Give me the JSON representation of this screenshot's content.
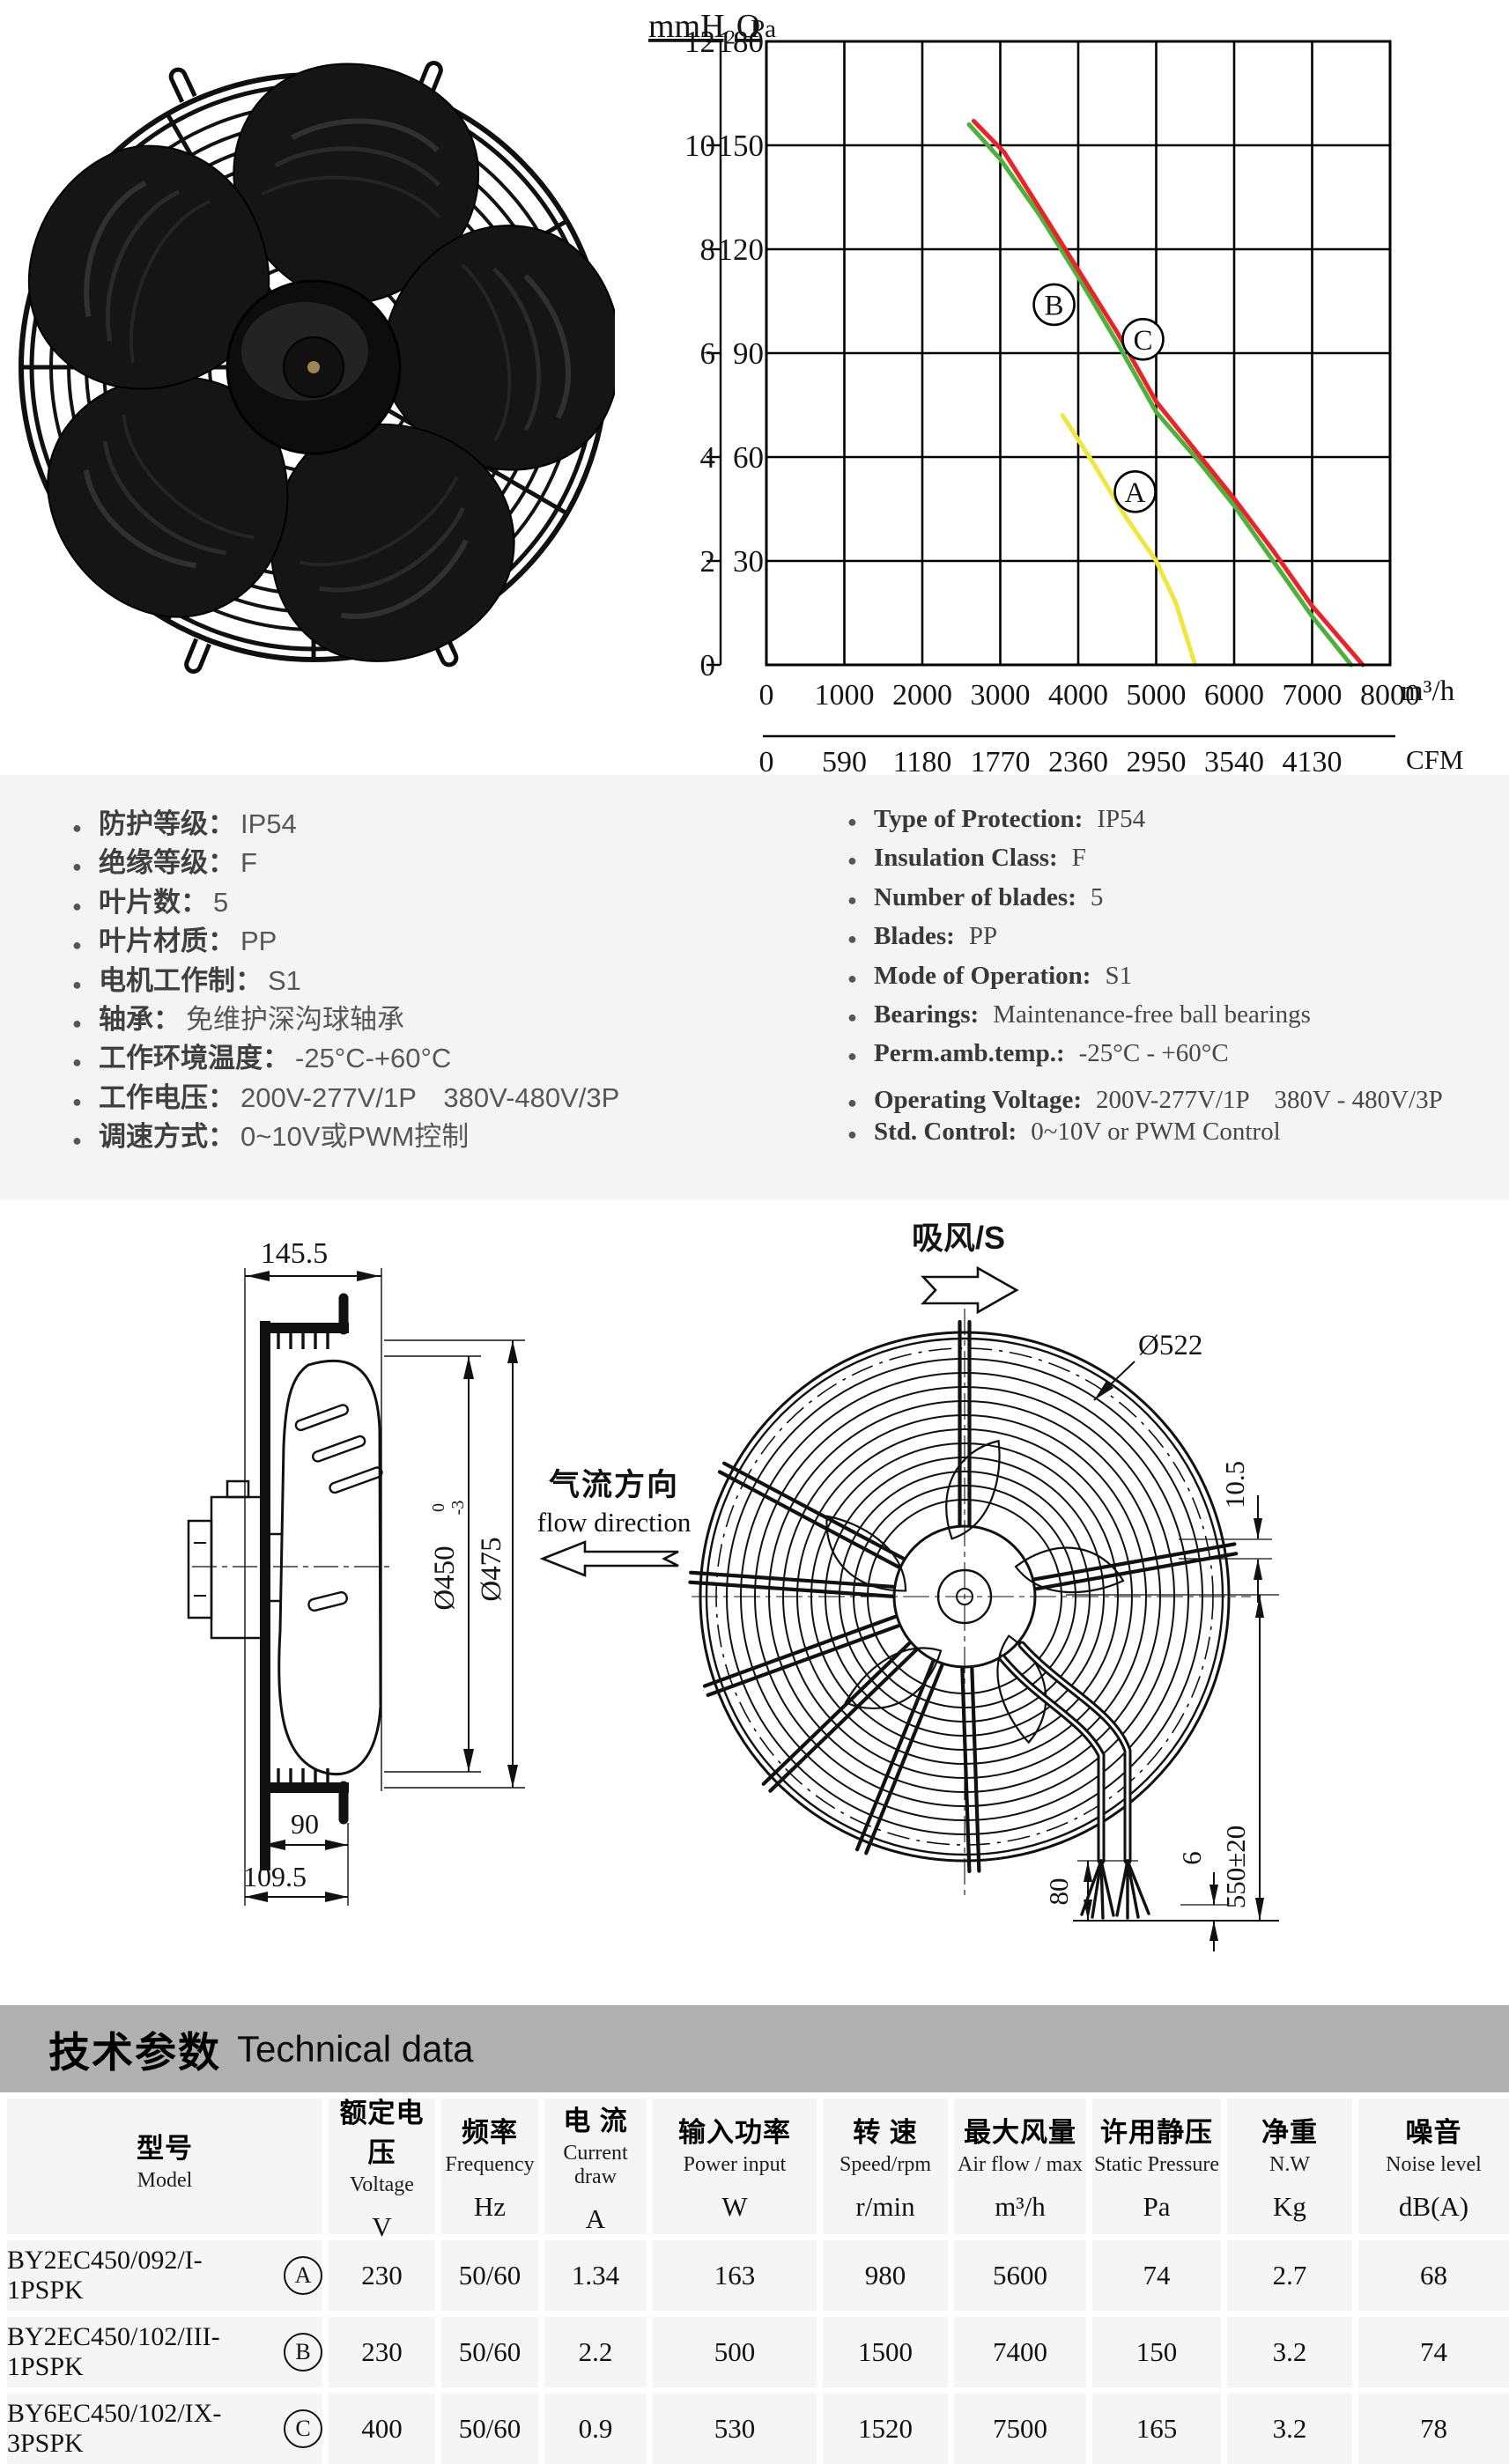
{
  "chart": {
    "y_title": "mmH₂O",
    "y_title2": "Pa",
    "x_unit": "m³/h",
    "x_unit2": "CFM"
  },
  "chart_data": {
    "type": "line",
    "title": "Fan performance curves (static pressure vs air flow)",
    "xlabel": "m³/h",
    "ylabel": "Pa",
    "xlim": [
      0,
      8000
    ],
    "ylim": [
      0,
      180
    ],
    "grid": true,
    "y_ticks_mmh2o": [
      12,
      10,
      8,
      6,
      4,
      2,
      0
    ],
    "y_ticks_pa": [
      180,
      150,
      120,
      90,
      60,
      30
    ],
    "x_ticks_m3h": [
      0,
      1000,
      2000,
      3000,
      4000,
      5000,
      6000,
      7000,
      8000
    ],
    "x_ticks_cfm": [
      "0",
      "590",
      "1180",
      "1770",
      "2360",
      "2950",
      "3540",
      "4130"
    ],
    "series": [
      {
        "name": "A",
        "color": "#efe73d",
        "points": [
          [
            3800,
            72
          ],
          [
            4200,
            58
          ],
          [
            4600,
            43
          ],
          [
            5000,
            30
          ],
          [
            5250,
            18
          ],
          [
            5500,
            0
          ]
        ],
        "label_at": [
          4730,
          50
        ]
      },
      {
        "name": "B",
        "color": "#4cb23c",
        "points": [
          [
            2600,
            156
          ],
          [
            3000,
            146
          ],
          [
            3500,
            130
          ],
          [
            4000,
            112
          ],
          [
            4500,
            93
          ],
          [
            5000,
            73
          ],
          [
            5500,
            60
          ],
          [
            6000,
            46
          ],
          [
            6500,
            30
          ],
          [
            7000,
            14
          ],
          [
            7500,
            0
          ]
        ],
        "label_at": [
          3690,
          104
        ]
      },
      {
        "name": "C",
        "color": "#eb2227",
        "points": [
          [
            2660,
            157
          ],
          [
            3050,
            148
          ],
          [
            3500,
            132
          ],
          [
            4000,
            114
          ],
          [
            4500,
            96
          ],
          [
            5000,
            76
          ],
          [
            5500,
            62
          ],
          [
            6000,
            48
          ],
          [
            6500,
            33
          ],
          [
            7000,
            17
          ],
          [
            7650,
            0
          ]
        ],
        "label_at": [
          4830,
          94
        ]
      }
    ]
  },
  "specs_cn": [
    {
      "label": "防护等级：",
      "value": "IP54"
    },
    {
      "label": "绝缘等级：",
      "value": "F"
    },
    {
      "label": "叶片数：",
      "value": "5"
    },
    {
      "label": "叶片材质：",
      "value": "PP"
    },
    {
      "label": "电机工作制：",
      "value": "S1"
    },
    {
      "label": "轴承：",
      "value": "免维护深沟球轴承"
    },
    {
      "label": "工作环境温度：",
      "value": "-25°C-+60°C"
    },
    {
      "label": "工作电压：",
      "value": "200V-277V/1P　380V-480V/3P"
    },
    {
      "label": "调速方式：",
      "value": "0~10V或PWM控制"
    }
  ],
  "specs_en": [
    {
      "label": "Type of Protection:",
      "value": "IP54"
    },
    {
      "label": "Insulation Class:",
      "value": "F"
    },
    {
      "label": "Number of blades:",
      "value": "5"
    },
    {
      "label": "Blades:",
      "value": "PP"
    },
    {
      "label": "Mode of Operation:",
      "value": "S1"
    },
    {
      "label": "Bearings:",
      "value": "Maintenance-free ball bearings"
    },
    {
      "label": "Perm.amb.temp.:",
      "value": "-25°C - +60°C"
    },
    {
      "label": "Operating Voltage:",
      "value": "200V-277V/1P　380V - 480V/3P"
    },
    {
      "label": "Std. Control:",
      "value": "0~10V or PWM Control"
    }
  ],
  "drawings": {
    "side": {
      "dim_width": "145.5",
      "dim_flange": "90",
      "dim_depth": "109.5",
      "dim_d450": "Ø450",
      "tol_hi": "0",
      "tol_lo": "-3",
      "dim_d475": "Ø475"
    },
    "flow_cn": "气流方向",
    "flow_en": "flow direction",
    "front": {
      "suction": "吸风/S",
      "dim_d522": "Ø522",
      "dim_wire": "10.5",
      "dim_cable": "550±20",
      "dim_tip": "6",
      "dim_strip": "80"
    }
  },
  "table": {
    "title_cn": "技术参数",
    "title_en": "Technical data",
    "columns": [
      {
        "cn": "型号",
        "en": "Model",
        "unit": ""
      },
      {
        "cn": "额定电压",
        "en": "Voltage",
        "unit": "V"
      },
      {
        "cn": "频率",
        "en": "Frequency",
        "unit": "Hz"
      },
      {
        "cn": "电 流",
        "en": "Current draw",
        "unit": "A"
      },
      {
        "cn": "输入功率",
        "en": "Power input",
        "unit": "W"
      },
      {
        "cn": "转 速",
        "en": "Speed/rpm",
        "unit": "r/min"
      },
      {
        "cn": "最大风量",
        "en": "Air flow / max",
        "unit": "m³/h"
      },
      {
        "cn": "许用静压",
        "en": "Static Pressure",
        "unit": "Pa"
      },
      {
        "cn": "净重",
        "en": "N.W",
        "unit": "Kg"
      },
      {
        "cn": "噪音",
        "en": "Noise level",
        "unit": "dB(A)"
      }
    ],
    "rows": [
      {
        "model": "BY2EC450/092/I-1PSPK",
        "badge": "A",
        "values": [
          "230",
          "50/60",
          "1.34",
          "163",
          "980",
          "5600",
          "74",
          "2.7",
          "68"
        ]
      },
      {
        "model": "BY2EC450/102/III-1PSPK",
        "badge": "B",
        "values": [
          "230",
          "50/60",
          "2.2",
          "500",
          "1500",
          "7400",
          "150",
          "3.2",
          "74"
        ]
      },
      {
        "model": "BY6EC450/102/IX-3PSPK",
        "badge": "C",
        "values": [
          "400",
          "50/60",
          "0.9",
          "530",
          "1520",
          "7500",
          "165",
          "3.2",
          "78"
        ]
      }
    ]
  }
}
